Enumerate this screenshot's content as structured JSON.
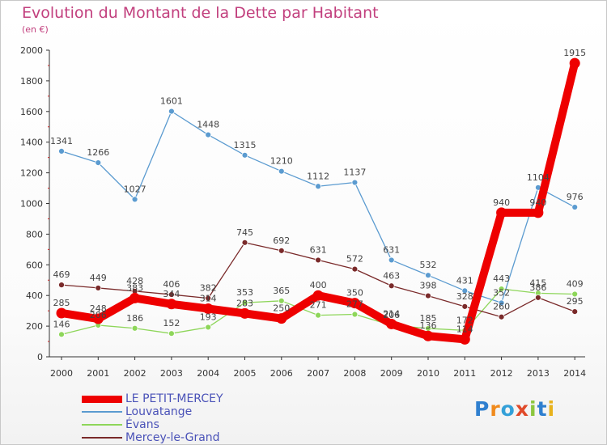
{
  "header": {
    "title": "Evolution du Montant de la Dette par Habitant",
    "unit": "(en €)"
  },
  "chart_data": {
    "type": "line",
    "title": "Evolution du Montant de la Dette par Habitant",
    "subtitle": "(en €)",
    "xlabel": "",
    "ylabel": "",
    "x": [
      "2000",
      "2001",
      "2002",
      "2003",
      "2004",
      "2005",
      "2006",
      "2007",
      "2008",
      "2009",
      "2010",
      "2011",
      "2012",
      "2013",
      "2014"
    ],
    "ylim": [
      0,
      2000
    ],
    "yticks": [
      0,
      200,
      400,
      600,
      800,
      1000,
      1200,
      1400,
      1600,
      1800,
      2000
    ],
    "grid": false,
    "legend_position": "bottom-left",
    "series": [
      {
        "name": "LE PETIT-MERCEY",
        "color": "#ee0000",
        "values": [
          285,
          248,
          383,
          344,
          314,
          283,
          250,
          400,
          350,
          214,
          136,
          114,
          940,
          940,
          1915
        ]
      },
      {
        "name": "Louvatange",
        "color": "#5b9bd0",
        "values": [
          1341,
          1266,
          1027,
          1601,
          1448,
          1315,
          1210,
          1112,
          1137,
          631,
          532,
          431,
          352,
          1104,
          976
        ]
      },
      {
        "name": "Évans",
        "color": "#8ed65a",
        "values": [
          146,
          206,
          186,
          152,
          193,
          353,
          365,
          271,
          277,
          206,
          185,
          172,
          443,
          415,
          409
        ]
      },
      {
        "name": "Mercey-le-Grand",
        "color": "#7a2a2a",
        "values": [
          469,
          449,
          428,
          406,
          382,
          745,
          692,
          631,
          572,
          463,
          398,
          328,
          260,
          386,
          295
        ]
      }
    ]
  },
  "logo": {
    "text": "Proxiti"
  }
}
